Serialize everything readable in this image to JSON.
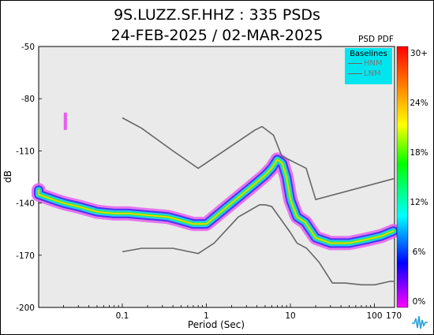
{
  "title_line1": "9S.LUZZ.SF.HHZ : 335 PSDs",
  "title_line2": "24-FEB-2025 / 02-MAR-2025",
  "pdf_label": "PSD PDF",
  "legend": {
    "title": "Baselines",
    "items": [
      {
        "label": "HNM",
        "color": "#666666"
      },
      {
        "label": "LNM",
        "color": "#666666"
      }
    ]
  },
  "logo_icon": "waveform-logo-icon",
  "chart_data": {
    "type": "heatmap",
    "xlabel": "Period (Sec)",
    "ylabel": "dB",
    "xscale": "log",
    "xlim": [
      0.01,
      170
    ],
    "ylim": [
      -200,
      -50
    ],
    "x_ticks": [
      {
        "value": 0.1,
        "label": "0.1"
      },
      {
        "value": 1,
        "label": "1"
      },
      {
        "value": 10,
        "label": "10"
      },
      {
        "value": 100,
        "label": "100"
      },
      {
        "value": 170,
        "label": "170"
      }
    ],
    "y_ticks": [
      -50,
      -80,
      -110,
      -140,
      -170,
      -200
    ],
    "colorbar": {
      "label": "PSD PDF",
      "ticks": [
        "30+",
        "24%",
        "18%",
        "12%",
        "6%",
        "0%"
      ],
      "colors": [
        "#ff00ff",
        "#0000ff",
        "#00ffff",
        "#00ff00",
        "#ffff00",
        "#ff8000",
        "#ff0000"
      ]
    },
    "baselines": [
      {
        "name": "HNM",
        "x": [
          0.1,
          0.17,
          0.4,
          0.8,
          3.8,
          4.6,
          6.3,
          7.9,
          15.4,
          20,
          170
        ],
        "y": [
          -91,
          -97,
          -110,
          -120,
          -98,
          -96,
          -101,
          -113,
          -120,
          -138,
          -126
        ]
      },
      {
        "name": "LNM",
        "x": [
          0.1,
          0.17,
          0.4,
          0.8,
          1.24,
          2.4,
          4.3,
          5,
          6,
          10,
          12,
          15.6,
          21.9,
          31.6,
          45,
          70,
          101,
          154,
          170
        ],
        "y": [
          -168,
          -166,
          -166,
          -169,
          -163,
          -148,
          -141,
          -141,
          -142,
          -157,
          -163,
          -166,
          -174,
          -186,
          -186,
          -187,
          -187,
          -185,
          -185
        ]
      }
    ],
    "mode_curve": {
      "x": [
        0.007,
        0.01,
        0.015,
        0.02,
        0.03,
        0.05,
        0.08,
        0.12,
        0.2,
        0.35,
        0.5,
        0.7,
        1,
        1.5,
        2,
        3,
        4,
        5,
        6,
        7,
        8,
        9,
        10,
        12,
        15,
        20,
        30,
        50,
        80,
        120,
        170
      ],
      "y": [
        -132,
        -135,
        -138,
        -140,
        -142,
        -145,
        -146,
        -146,
        -147,
        -148,
        -150,
        -152,
        -152,
        -145,
        -140,
        -133,
        -128,
        -124,
        -120,
        -115,
        -117,
        -125,
        -138,
        -148,
        -151,
        -160,
        -163,
        -163,
        -161,
        -159,
        -156
      ]
    },
    "spike": {
      "x": 0.021,
      "y": [
        -88,
        -98
      ]
    }
  }
}
